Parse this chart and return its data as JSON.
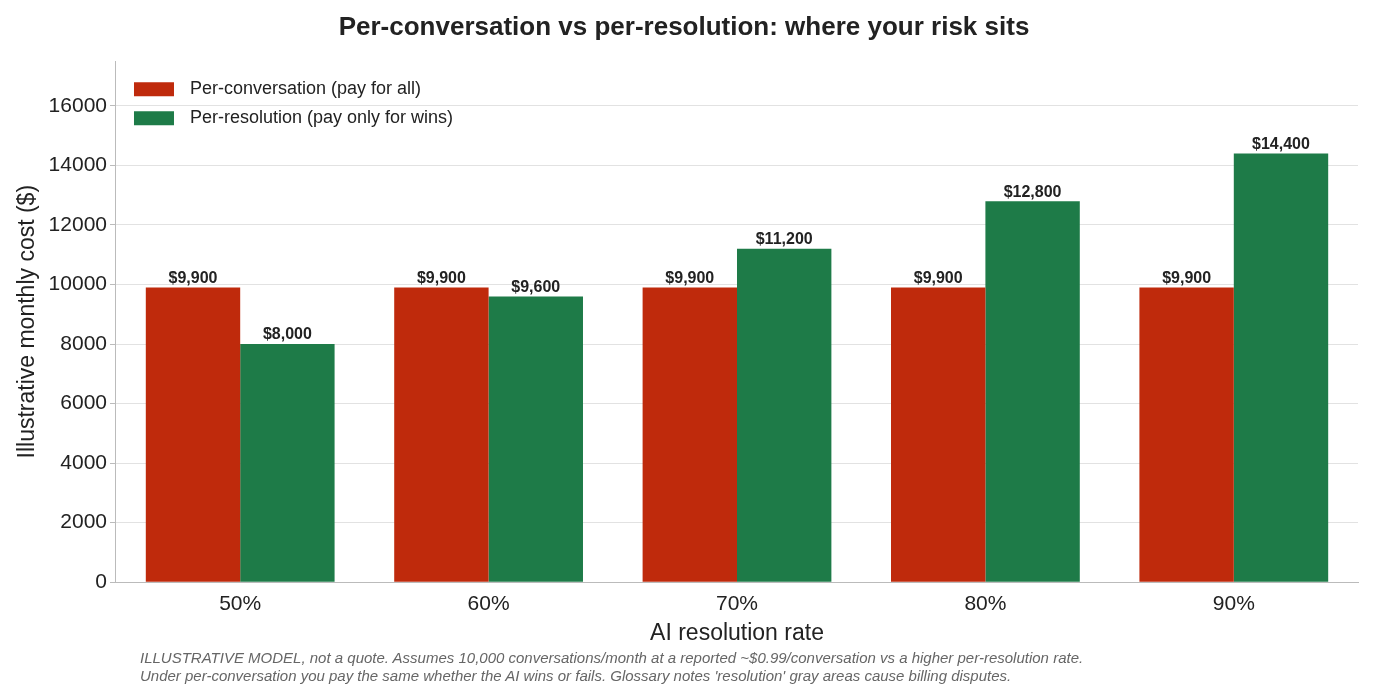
{
  "chart_data": {
    "type": "bar",
    "title": "Per-conversation vs per-resolution: where your risk sits",
    "xlabel": "AI resolution rate",
    "ylabel": "Illustrative monthly cost ($)",
    "categories": [
      "50%",
      "60%",
      "70%",
      "80%",
      "90%"
    ],
    "series": [
      {
        "name": "Per-conversation (pay for all)",
        "color": "#bf2a0c",
        "values": [
          9900,
          9900,
          9900,
          9900,
          9900
        ],
        "value_labels": [
          "$9,900",
          "$9,900",
          "$9,900",
          "$9,900",
          "$9,900"
        ]
      },
      {
        "name": "Per-resolution (pay only for wins)",
        "color": "#1e7b48",
        "values": [
          8000,
          9600,
          11200,
          12800,
          14400
        ],
        "value_labels": [
          "$8,000",
          "$9,600",
          "$11,200",
          "$12,800",
          "$14,400"
        ]
      }
    ],
    "ylim": [
      0,
      17500
    ],
    "yticks": [
      0,
      2000,
      4000,
      6000,
      8000,
      10000,
      12000,
      14000,
      16000
    ],
    "grid": "y",
    "legend": "top left",
    "annotations": [
      "ILLUSTRATIVE MODEL, not a quote. Assumes 10,000 conversations/month at a reported ~$0.99/conversation vs a higher per-resolution rate.",
      "Under per-conversation you pay the same whether the AI wins or fails. Glossary notes 'resolution' gray areas cause billing disputes."
    ]
  }
}
